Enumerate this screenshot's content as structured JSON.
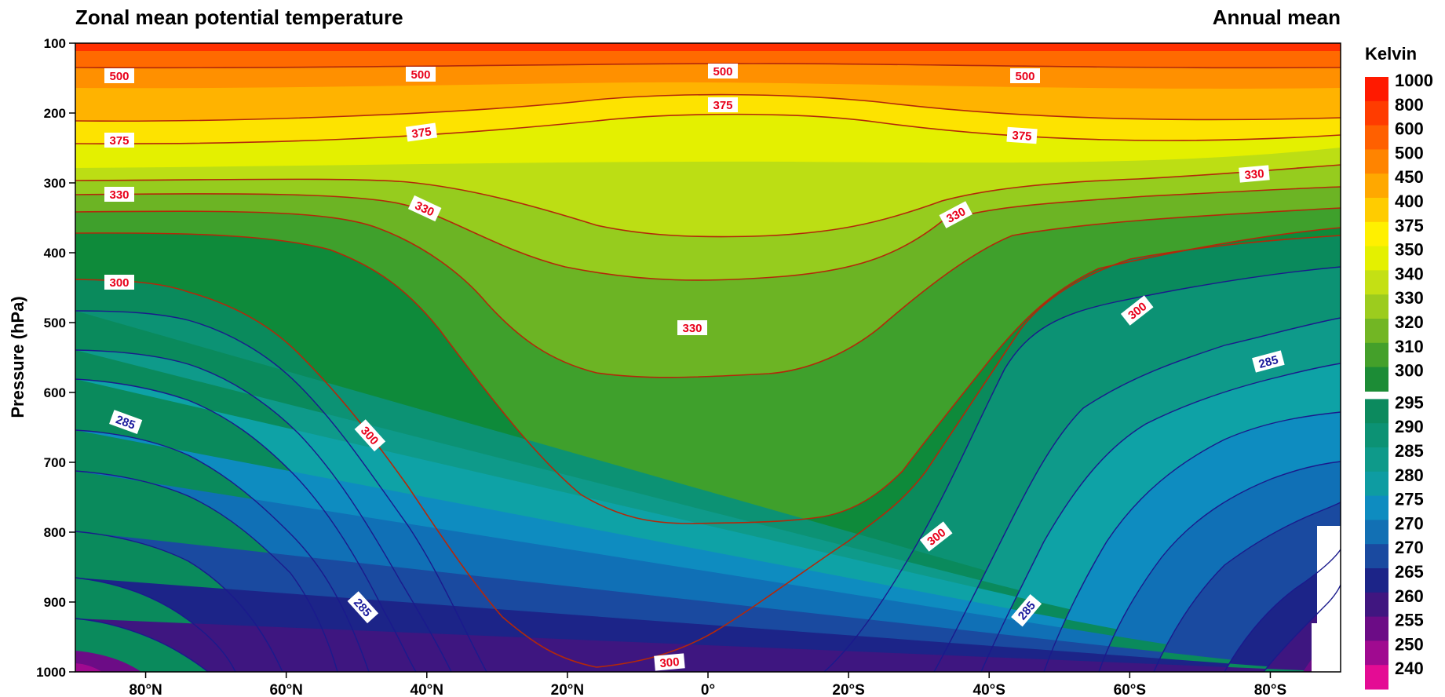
{
  "chart_data": {
    "type": "contour",
    "title_left": "Zonal mean potential temperature",
    "title_right": "Annual mean",
    "ylabel": "Pressure (hPa)",
    "colorbar_title": "Kelvin",
    "x_ticks": [
      "80°N",
      "60°N",
      "40°N",
      "20°N",
      "0°",
      "20°S",
      "40°S",
      "60°S",
      "80°S"
    ],
    "y_ticks": [
      "100",
      "200",
      "300",
      "400",
      "500",
      "600",
      "700",
      "800",
      "900",
      "1000"
    ],
    "xlim": [
      "90°N",
      "90°S"
    ],
    "ylim": [
      1000,
      100
    ],
    "colorbar_labels": [
      "1000",
      "800",
      "600",
      "500",
      "450",
      "400",
      "375",
      "350",
      "340",
      "330",
      "320",
      "310",
      "300",
      "295",
      "290",
      "285",
      "280",
      "275",
      "270",
      "270",
      "265",
      "260",
      "255",
      "250",
      "240"
    ],
    "colorbar_colors": [
      "#ff1a00",
      "#ff3c00",
      "#ff6000",
      "#ff8400",
      "#ffa800",
      "#ffcc00",
      "#fff000",
      "#e4f000",
      "#c4e014",
      "#9ccc1e",
      "#72b624",
      "#44a02a",
      "#1c8c36",
      "#0c8a5e",
      "#0c9274",
      "#0e9a8a",
      "#0e9ca2",
      "#0e8cc0",
      "#1270b4",
      "#1a4aa0",
      "#1c2488",
      "#401680",
      "#6c0c86",
      "#a00a90",
      "#e40c94"
    ],
    "contour_labels": {
      "red": [
        "500",
        "500",
        "500",
        "500",
        "375",
        "375",
        "375",
        "375",
        "330",
        "330",
        "330",
        "330",
        "330",
        "300",
        "300",
        "300",
        "300",
        "300"
      ],
      "blue": [
        "285",
        "285",
        "285",
        "285"
      ]
    }
  }
}
